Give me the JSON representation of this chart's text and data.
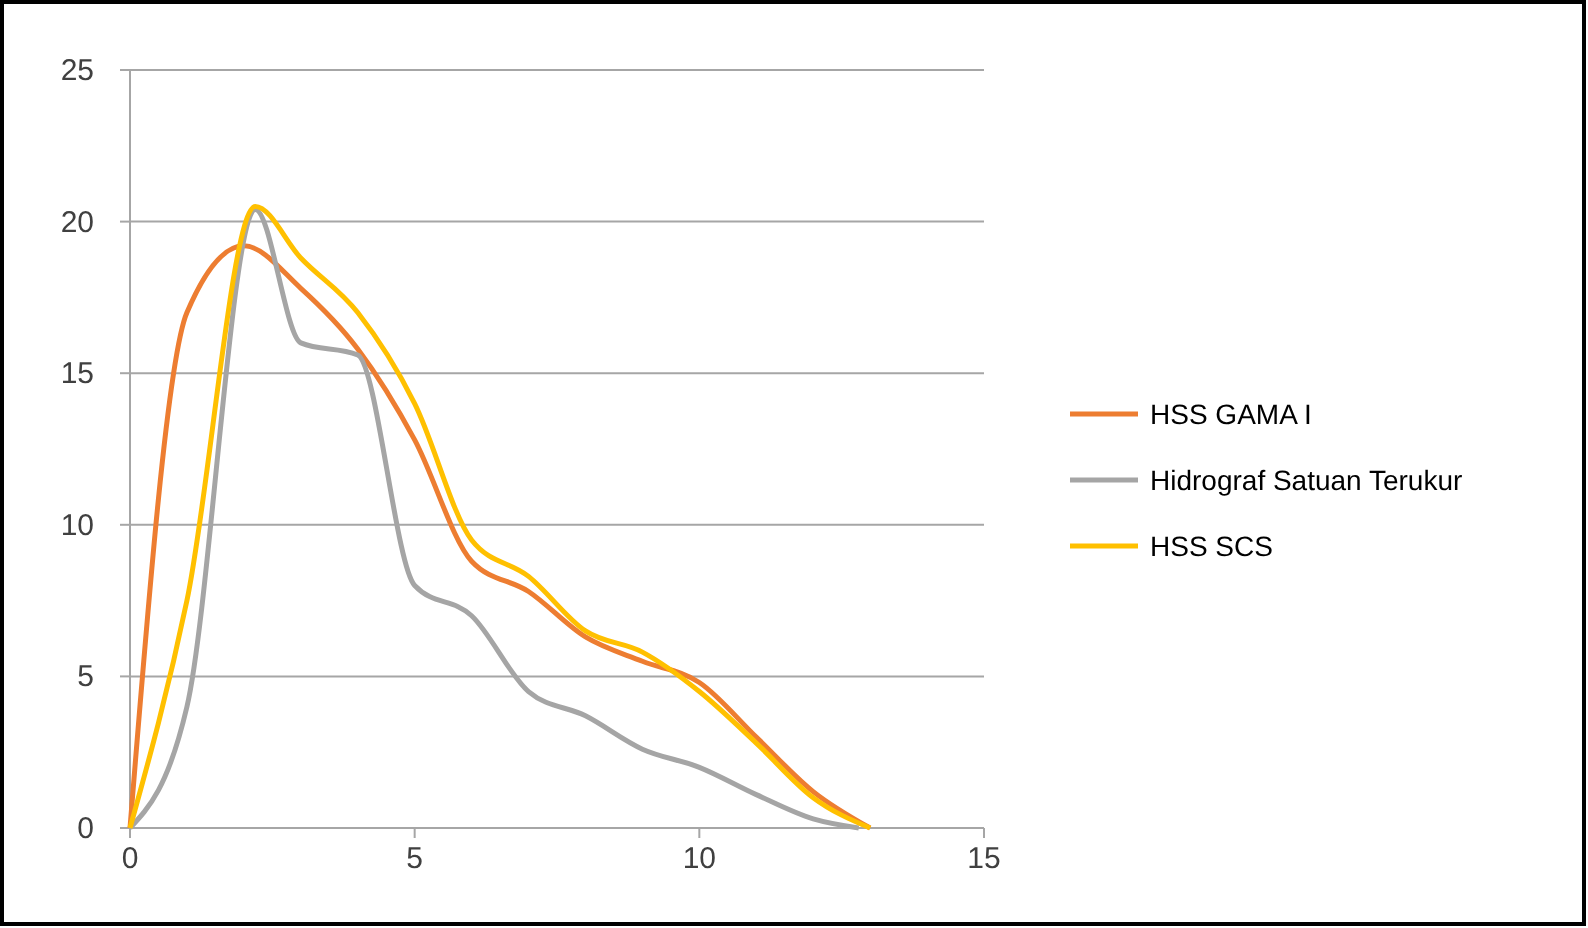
{
  "chart_data": {
    "type": "line",
    "xlim": [
      0,
      15
    ],
    "xticks": [
      0,
      5,
      10,
      15
    ],
    "ylim": [
      0,
      25
    ],
    "yticks": [
      0,
      5,
      10,
      15,
      20,
      25
    ],
    "grid": "y",
    "legend": "right",
    "marker": "none",
    "line_style": "solid",
    "series": [
      {
        "name": "HSS GAMA I",
        "color": "#ed7d31",
        "x": [
          0,
          1,
          2,
          3,
          4,
          5,
          6,
          7,
          8,
          9,
          10,
          11,
          12,
          13
        ],
        "values": [
          0,
          17,
          19.2,
          17.8,
          15.8,
          12.8,
          8.8,
          7.8,
          6.3,
          5.5,
          4.8,
          3,
          1.2,
          0
        ]
      },
      {
        "name": "Hidrograf Satuan Terukur",
        "color": "#a5a5a5",
        "x": [
          0,
          1,
          2.2,
          3,
          4,
          5,
          6,
          7,
          8,
          9,
          10,
          11,
          12,
          12.8
        ],
        "values": [
          0,
          4,
          20.4,
          16,
          15.6,
          8,
          7,
          4.5,
          3.7,
          2.6,
          2,
          1.1,
          0.3,
          0
        ]
      },
      {
        "name": "HSS SCS",
        "color": "#ffc000",
        "x": [
          0,
          1,
          2.2,
          3,
          4,
          5,
          6,
          7,
          8,
          9,
          10,
          11,
          12,
          13
        ],
        "values": [
          0,
          7.5,
          20.5,
          18.8,
          17,
          14,
          9.5,
          8.3,
          6.5,
          5.8,
          4.5,
          2.8,
          1,
          0
        ]
      }
    ]
  }
}
